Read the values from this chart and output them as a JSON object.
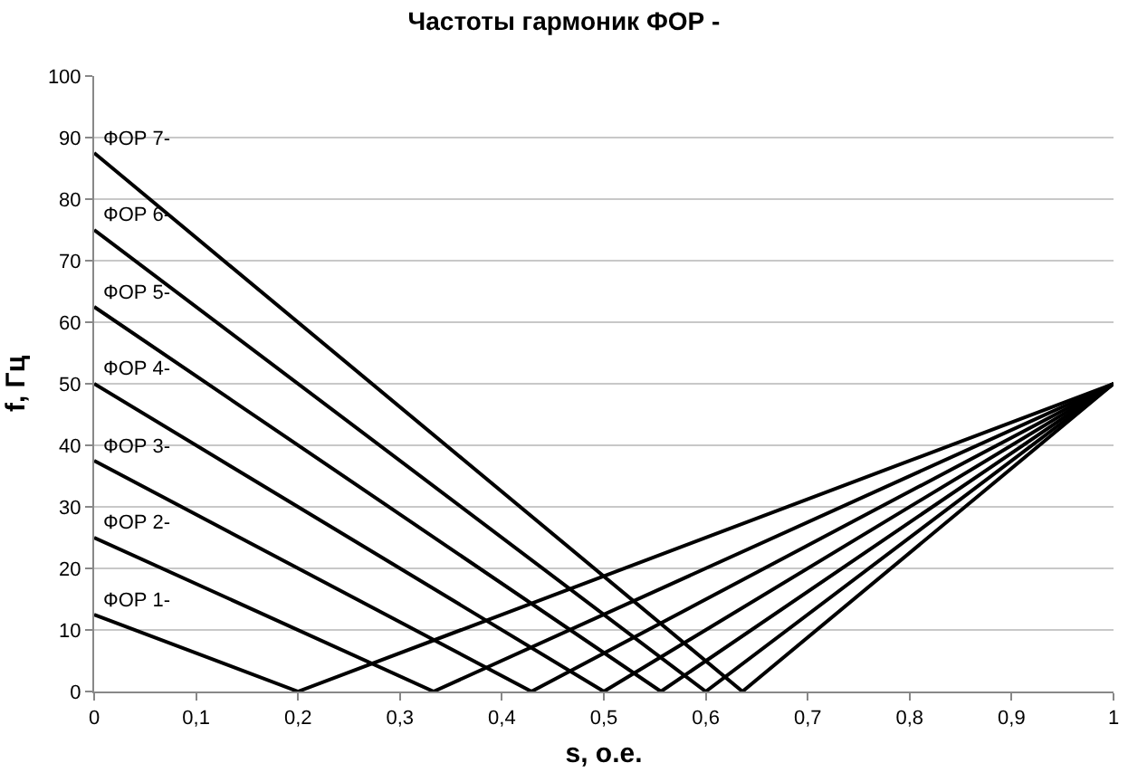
{
  "chart_data": {
    "type": "line",
    "title": "Частоты гармоник ФОР -",
    "xlabel": "s, о.е.",
    "ylabel": "f, Гц",
    "xlim": [
      0,
      1
    ],
    "ylim": [
      0,
      100
    ],
    "xticks": [
      0,
      {
        "value": 0.1,
        "label": "0,1"
      },
      {
        "value": 0.2,
        "label": "0,2"
      },
      {
        "value": 0.3,
        "label": "0,3"
      },
      {
        "value": 0.4,
        "label": "0,4"
      },
      {
        "value": 0.5,
        "label": "0,5"
      },
      {
        "value": 0.6,
        "label": "0,6"
      },
      {
        "value": 0.7,
        "label": "0,7"
      },
      {
        "value": 0.8,
        "label": "0,8"
      },
      {
        "value": 0.9,
        "label": "0,9"
      },
      1
    ],
    "yticks": [
      0,
      10,
      20,
      30,
      40,
      50,
      60,
      70,
      80,
      90,
      100
    ],
    "grid": "y",
    "legend": false,
    "marker": "none",
    "line_style": "solid",
    "series": [
      {
        "name": "ФОР 1-",
        "color": "#000000",
        "x": [
          0,
          0.2,
          1
        ],
        "values": [
          12.5,
          0,
          50
        ]
      },
      {
        "name": "ФОР 2-",
        "color": "#000000",
        "x": [
          0,
          0.333,
          1
        ],
        "values": [
          25,
          0,
          50
        ]
      },
      {
        "name": "ФОР 3-",
        "color": "#000000",
        "x": [
          0,
          0.429,
          1
        ],
        "values": [
          37.5,
          0,
          50
        ]
      },
      {
        "name": "ФОР 4-",
        "color": "#000000",
        "x": [
          0,
          0.5,
          1
        ],
        "values": [
          50,
          0,
          50
        ]
      },
      {
        "name": "ФОР 5-",
        "color": "#000000",
        "x": [
          0,
          0.556,
          1
        ],
        "values": [
          62.5,
          0,
          50
        ]
      },
      {
        "name": "ФОР 6-",
        "color": "#000000",
        "x": [
          0,
          0.6,
          1
        ],
        "values": [
          75,
          0,
          50
        ]
      },
      {
        "name": "ФОР 7-",
        "color": "#000000",
        "x": [
          0,
          0.636,
          1
        ],
        "values": [
          87.5,
          0,
          50
        ]
      }
    ]
  }
}
